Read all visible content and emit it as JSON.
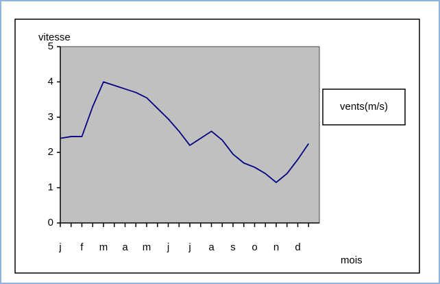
{
  "chart_data": {
    "type": "line",
    "y_label": "vitesse",
    "x_label": "mois",
    "categories": [
      "j",
      null,
      "f",
      null,
      "m",
      null,
      "a",
      null,
      "m",
      null,
      "j",
      null,
      "j",
      null,
      "a",
      null,
      "s",
      null,
      "o",
      null,
      "n",
      null,
      "d",
      null
    ],
    "series": [
      {
        "name": "vents(m/s)",
        "color": "#000080",
        "values": [
          2.4,
          2.45,
          2.45,
          3.3,
          4.0,
          3.9,
          3.8,
          3.7,
          3.55,
          3.25,
          2.95,
          2.6,
          2.2,
          2.4,
          2.6,
          2.35,
          1.95,
          1.7,
          1.58,
          1.4,
          1.15,
          1.4,
          1.8,
          2.25
        ]
      }
    ],
    "ylim": [
      0,
      5
    ],
    "yticks": [
      0,
      1,
      2,
      3,
      4,
      5
    ],
    "plot_color": "#c0c0c0",
    "legend": "right"
  }
}
